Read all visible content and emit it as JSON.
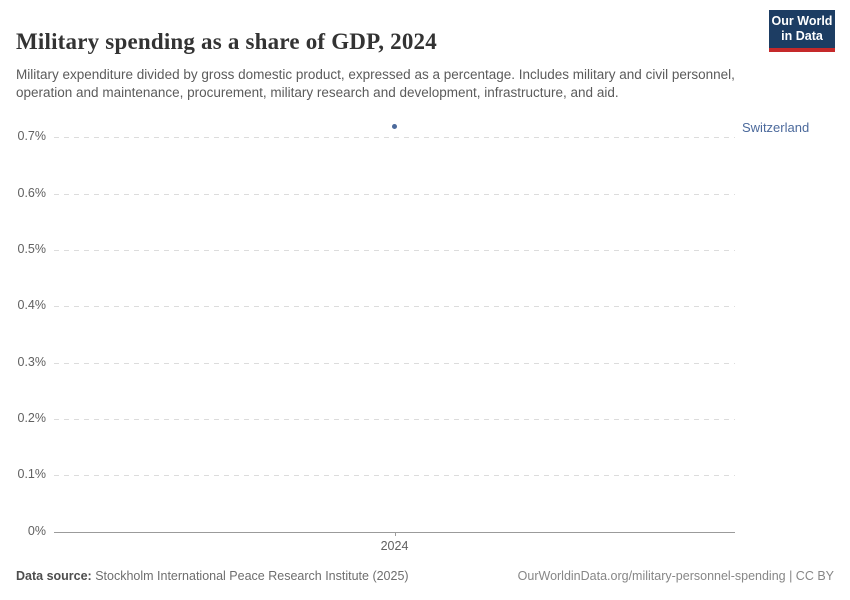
{
  "header": {
    "title": "Military spending as a share of GDP, 2024",
    "subtitle": "Military expenditure divided by gross domestic product, expressed as a percentage. Includes military and civil personnel, operation and maintenance, procurement, military research and development, infrastructure, and aid."
  },
  "logo": {
    "line1": "Our World",
    "line2": "in Data",
    "bg_color": "#1d3d63",
    "bar_color": "#c5292a"
  },
  "chart_data": {
    "type": "scatter",
    "title": "Military spending as a share of GDP, 2024",
    "x": [
      2024
    ],
    "series": [
      {
        "name": "Switzerland",
        "values": [
          0.72
        ],
        "color": "#4c6a9c"
      }
    ],
    "ylim": [
      0,
      0.75
    ],
    "yticks": [
      0,
      0.1,
      0.2,
      0.3,
      0.4,
      0.5,
      0.6,
      0.7
    ],
    "ytick_labels": [
      "0%",
      "0.1%",
      "0.2%",
      "0.3%",
      "0.4%",
      "0.5%",
      "0.6%",
      "0.7%"
    ],
    "xtick_labels": [
      "2024"
    ],
    "xlabel": "",
    "ylabel": "",
    "grid": "horizontal-dashed",
    "legend_position": "right-entity-label"
  },
  "footer": {
    "datasource_label": "Data source:",
    "datasource_text": " Stockholm International Peace Research Institute (2025)",
    "attribution": "OurWorldinData.org/military-personnel-spending | CC BY"
  }
}
